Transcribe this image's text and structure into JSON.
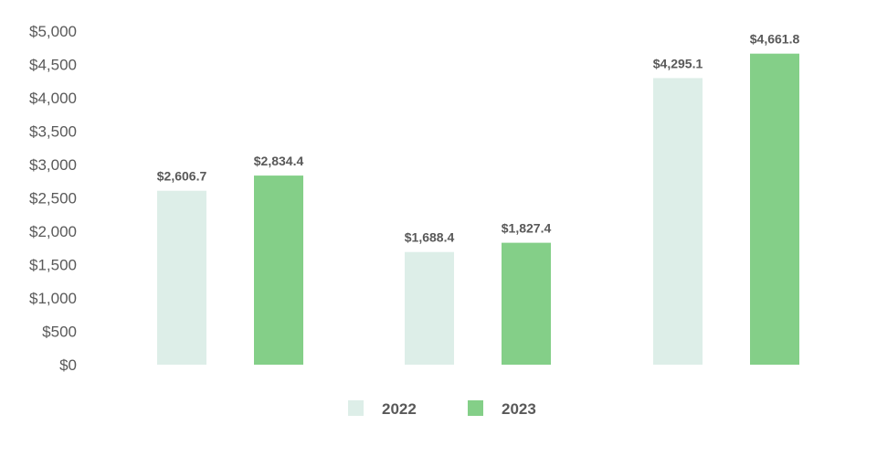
{
  "chart_data": {
    "type": "bar",
    "title": "",
    "xlabel": "",
    "ylabel": "",
    "categories": [
      "",
      "",
      ""
    ],
    "series": [
      {
        "name": "2022",
        "color": "#ddeee8",
        "values": [
          2606.7,
          1688.4,
          4295.1
        ],
        "labels": [
          "$2,606.7",
          "$1,688.4",
          "$4,295.1"
        ]
      },
      {
        "name": "2023",
        "color": "#84cf88",
        "values": [
          2834.4,
          1827.4,
          4661.8
        ],
        "labels": [
          "$2,834.4",
          "$1,827.4",
          "$4,661.8"
        ]
      }
    ],
    "ylim": [
      0,
      5000
    ],
    "y_ticks": [
      0,
      500,
      1000,
      1500,
      2000,
      2500,
      3000,
      3500,
      4000,
      4500,
      5000
    ],
    "y_tick_labels": [
      "$0",
      "$500",
      "$1,000",
      "$1,500",
      "$2,000",
      "$2,500",
      "$3,000",
      "$3,500",
      "$4,000",
      "$4,500",
      "$5,000"
    ],
    "grid": false,
    "legend_position": "bottom-center"
  }
}
